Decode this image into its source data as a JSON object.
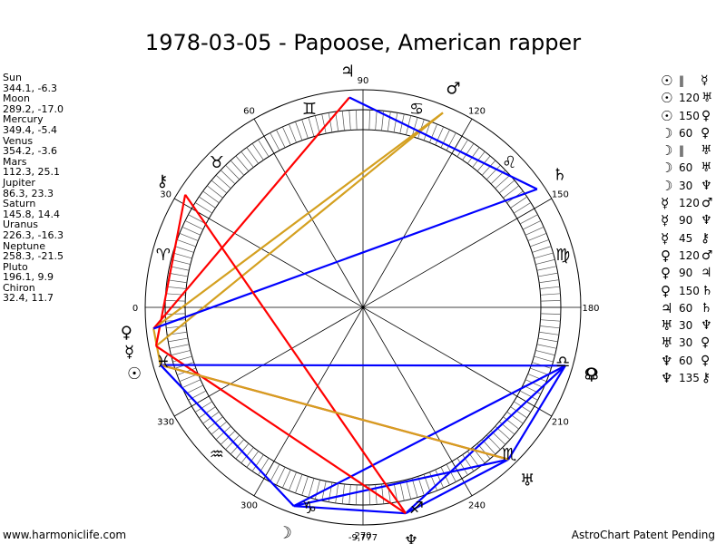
{
  "title": "1978-03-05 - Papoose, American rapper",
  "positions": [
    {
      "name": "Sun",
      "value": "344.1, -6.3"
    },
    {
      "name": "Moon",
      "value": "289.2, -17.0"
    },
    {
      "name": "Mercury",
      "value": "349.4, -5.4"
    },
    {
      "name": "Venus",
      "value": "354.2, -3.6"
    },
    {
      "name": "Mars",
      "value": "112.3, 25.1"
    },
    {
      "name": "Jupiter",
      "value": "86.3, 23.3"
    },
    {
      "name": "Saturn",
      "value": "145.8, 14.4"
    },
    {
      "name": "Uranus",
      "value": "226.3, -16.3"
    },
    {
      "name": "Neptune",
      "value": "258.3, -21.5"
    },
    {
      "name": "Pluto",
      "value": "196.1, 9.9"
    },
    {
      "name": "Chiron",
      "value": "32.4, 11.7"
    }
  ],
  "aspects": [
    {
      "p1": "☉",
      "asp": "‖",
      "p2": "☿"
    },
    {
      "p1": "☉",
      "asp": "120",
      "p2": "♅"
    },
    {
      "p1": "☉",
      "asp": "150",
      "p2": "♀"
    },
    {
      "p1": "☽",
      "asp": "60",
      "p2": "♀"
    },
    {
      "p1": "☽",
      "asp": "‖",
      "p2": "♅"
    },
    {
      "p1": "☽",
      "asp": "60",
      "p2": "♅"
    },
    {
      "p1": "☽",
      "asp": "30",
      "p2": "♆"
    },
    {
      "p1": "☿",
      "asp": "120",
      "p2": "♂"
    },
    {
      "p1": "☿",
      "asp": "90",
      "p2": "♆"
    },
    {
      "p1": "☿",
      "asp": "45",
      "p2": "⚷"
    },
    {
      "p1": "♀",
      "asp": "120",
      "p2": "♂"
    },
    {
      "p1": "♀",
      "asp": "90",
      "p2": "♃"
    },
    {
      "p1": "♀",
      "asp": "150",
      "p2": "♄"
    },
    {
      "p1": "♃",
      "asp": "60",
      "p2": "♄"
    },
    {
      "p1": "♅",
      "asp": "30",
      "p2": "♆"
    },
    {
      "p1": "♅",
      "asp": "30",
      "p2": "♀"
    },
    {
      "p1": "♆",
      "asp": "60",
      "p2": "♀"
    },
    {
      "p1": "♆",
      "asp": "135",
      "p2": "⚷"
    }
  ],
  "wheel": {
    "degree_labels": [
      "0",
      "30",
      "60",
      "90",
      "120",
      "150",
      "180",
      "210",
      "240",
      "270",
      "300",
      "330"
    ],
    "bottom_readout": "-9,777",
    "signs": [
      {
        "name": "aries-icon",
        "glyph": "♈",
        "deg": 15
      },
      {
        "name": "taurus-icon",
        "glyph": "♉",
        "deg": 45
      },
      {
        "name": "gemini-icon",
        "glyph": "♊",
        "deg": 75
      },
      {
        "name": "cancer-icon",
        "glyph": "♋",
        "deg": 105
      },
      {
        "name": "leo-icon",
        "glyph": "♌",
        "deg": 135
      },
      {
        "name": "virgo-icon",
        "glyph": "♍",
        "deg": 165
      },
      {
        "name": "libra-icon",
        "glyph": "♎",
        "deg": 195
      },
      {
        "name": "scorpio-icon",
        "glyph": "♏",
        "deg": 225
      },
      {
        "name": "sagittarius-icon",
        "glyph": "♐",
        "deg": 255
      },
      {
        "name": "capricorn-icon",
        "glyph": "♑",
        "deg": 285
      },
      {
        "name": "aquarius-icon",
        "glyph": "♒",
        "deg": 315
      },
      {
        "name": "pisces-icon",
        "glyph": "♓",
        "deg": 345
      }
    ],
    "planets": [
      {
        "name": "sun-icon",
        "glyph": "☉",
        "deg": 344.1
      },
      {
        "name": "moon-icon",
        "glyph": "☽",
        "deg": 289.2
      },
      {
        "name": "mercury-icon",
        "glyph": "☿",
        "deg": 349.4
      },
      {
        "name": "venus-icon",
        "glyph": "♀",
        "deg": 354.2
      },
      {
        "name": "mars-icon",
        "glyph": "♂",
        "deg": 112.3
      },
      {
        "name": "jupiter-icon",
        "glyph": "♃",
        "deg": 86.3
      },
      {
        "name": "saturn-icon",
        "glyph": "♄",
        "deg": 145.8
      },
      {
        "name": "uranus-icon",
        "glyph": "♅",
        "deg": 226.3
      },
      {
        "name": "neptune-icon",
        "glyph": "♆",
        "deg": 258.3
      },
      {
        "name": "pluto-icon",
        "glyph": "♀",
        "deg": 196.1
      },
      {
        "name": "chiron-icon",
        "glyph": "⚷",
        "deg": 32.4
      },
      {
        "name": "node-icon",
        "glyph": "☊",
        "deg": 196.1
      }
    ],
    "aspect_lines": [
      {
        "from": 344.1,
        "to": 226.3,
        "color": "#ff0000"
      },
      {
        "from": 344.1,
        "to": 354.2,
        "color": "#d4a020"
      },
      {
        "from": 289.2,
        "to": 196.1,
        "color": "#0000ff"
      },
      {
        "from": 289.2,
        "to": 226.3,
        "color": "#0000ff"
      },
      {
        "from": 289.2,
        "to": 258.3,
        "color": "#0000ff"
      },
      {
        "from": 349.4,
        "to": 112.3,
        "color": "#d4a020"
      },
      {
        "from": 349.4,
        "to": 258.3,
        "color": "#ff0000"
      },
      {
        "from": 349.4,
        "to": 32.4,
        "color": "#ff0000"
      },
      {
        "from": 354.2,
        "to": 112.3,
        "color": "#d4a020"
      },
      {
        "from": 354.2,
        "to": 86.3,
        "color": "#ff0000"
      },
      {
        "from": 354.2,
        "to": 145.8,
        "color": "#0000ff"
      },
      {
        "from": 86.3,
        "to": 145.8,
        "color": "#0000ff"
      },
      {
        "from": 226.3,
        "to": 258.3,
        "color": "#0000ff"
      },
      {
        "from": 226.3,
        "to": 196.1,
        "color": "#0000ff"
      },
      {
        "from": 258.3,
        "to": 196.1,
        "color": "#0000ff"
      },
      {
        "from": 258.3,
        "to": 32.4,
        "color": "#ff0000"
      },
      {
        "from": 196.1,
        "to": 344.1,
        "color": "#0000ff"
      },
      {
        "from": 226.3,
        "to": 344.1,
        "color": "#d4a020"
      },
      {
        "from": 289.2,
        "to": 344.1,
        "color": "#0000ff"
      }
    ],
    "colors": {
      "trine": "#0000ff",
      "square": "#ff0000",
      "minor": "#d4a020"
    }
  },
  "footer": {
    "left": "www.harmoniclife.com",
    "right": "AstroChart Patent Pending"
  }
}
